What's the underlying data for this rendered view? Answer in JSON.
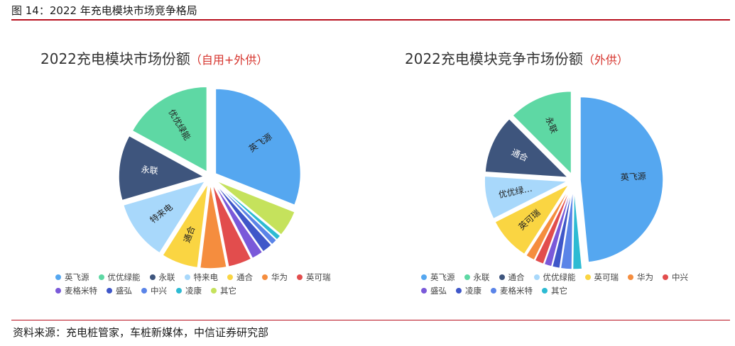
{
  "figure": {
    "title": "图 14：2022 年充电模块市场竞争格局",
    "source": "资料来源：充电桩管家，车桩新媒体，中信证券研究部"
  },
  "chart_data": [
    {
      "type": "pie",
      "title": "2022充电模块市场份额",
      "title_suffix": "（自用+外供）",
      "start_angle_deg": -90,
      "slices": [
        {
          "label": "英飞源",
          "value": 31,
          "color": "#55a7f0",
          "slice_label": "英飞源"
        },
        {
          "label": "其它",
          "value": 5,
          "color": "#c5e25c",
          "slice_label": ""
        },
        {
          "label": "凌康",
          "value": 1,
          "color": "#2dbbd3",
          "slice_label": ""
        },
        {
          "label": "中兴",
          "value": 1.2,
          "color": "#5a84e8",
          "slice_label": ""
        },
        {
          "label": "盛弘",
          "value": 2,
          "color": "#3f57c9",
          "slice_label": ""
        },
        {
          "label": "麦格米特",
          "value": 2.2,
          "color": "#7a59d9",
          "slice_label": ""
        },
        {
          "label": "英可瑞",
          "value": 4.5,
          "color": "#e24d4d",
          "slice_label": ""
        },
        {
          "label": "华为",
          "value": 5,
          "color": "#f58d3e",
          "slice_label": ""
        },
        {
          "label": "通合",
          "value": 7,
          "color": "#fad542",
          "slice_label": "通合"
        },
        {
          "label": "特来电",
          "value": 11.5,
          "color": "#a8d8fb",
          "slice_label": "特来电"
        },
        {
          "label": "永联",
          "value": 12.5,
          "color": "#3e557d",
          "slice_label": "永联"
        },
        {
          "label": "优优绿能",
          "value": 17,
          "color": "#5ed8a4",
          "slice_label": "优优绿能"
        }
      ],
      "legend": [
        "英飞源",
        "优优绿能",
        "永联",
        "特来电",
        "通合",
        "华为",
        "英可瑞",
        "麦格米特",
        "盛弘",
        "中兴",
        "凌康",
        "其它"
      ]
    },
    {
      "type": "pie",
      "title": "2022充电模块竞争市场份额",
      "title_suffix": "（外供）",
      "start_angle_deg": -90,
      "slices": [
        {
          "label": "英飞源",
          "value": 48.5,
          "color": "#55a7f0",
          "slice_label": "英飞源"
        },
        {
          "label": "其它",
          "value": 1.8,
          "color": "#2dbbd3",
          "slice_label": ""
        },
        {
          "label": "麦格米特",
          "value": 2.2,
          "color": "#5a84e8",
          "slice_label": ""
        },
        {
          "label": "凌康",
          "value": 1.5,
          "color": "#3f57c9",
          "slice_label": ""
        },
        {
          "label": "盛弘",
          "value": 1.5,
          "color": "#7a59d9",
          "slice_label": ""
        },
        {
          "label": "中兴",
          "value": 1.8,
          "color": "#e24d4d",
          "slice_label": ""
        },
        {
          "label": "华为",
          "value": 1.8,
          "color": "#f58d3e",
          "slice_label": ""
        },
        {
          "label": "英可瑞",
          "value": 8.5,
          "color": "#fad542",
          "slice_label": "英可瑞"
        },
        {
          "label": "优优绿能",
          "value": 8.5,
          "color": "#a8d8fb",
          "slice_label": "优优绿…"
        },
        {
          "label": "通合",
          "value": 11.5,
          "color": "#3e557d",
          "slice_label": "通合"
        },
        {
          "label": "永联",
          "value": 12.5,
          "color": "#5ed8a4",
          "slice_label": "永联"
        }
      ],
      "legend": [
        "英飞源",
        "永联",
        "通合",
        "优优绿能",
        "英可瑞",
        "华为",
        "中兴",
        "盛弘",
        "凌康",
        "麦格米特",
        "其它"
      ]
    }
  ]
}
